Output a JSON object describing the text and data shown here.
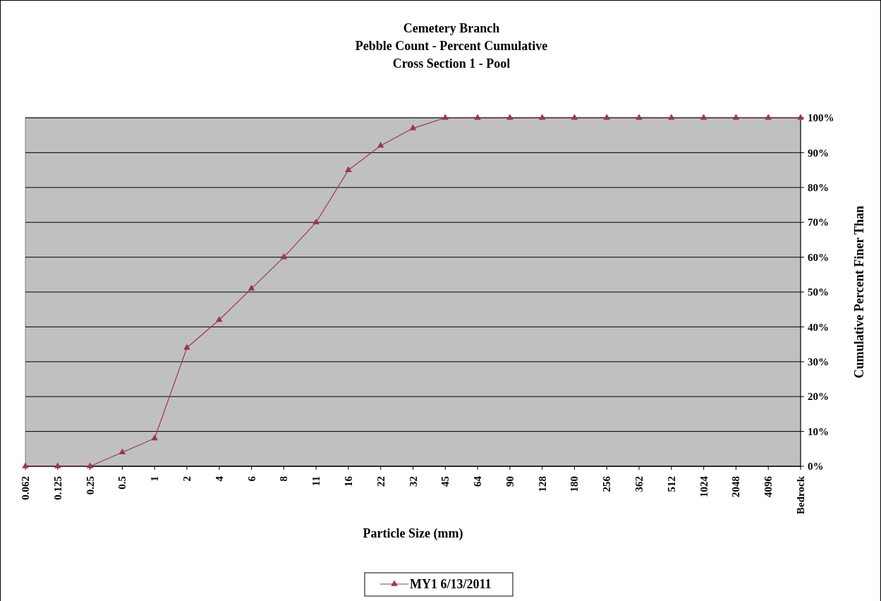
{
  "chart_data": {
    "type": "line",
    "title": "Cemetery Branch\nPebble Count - Percent Cumulative\nCross Section 1 - Pool",
    "xlabel": "Particle Size (mm)",
    "ylabel": "Cumulative Percent Finer Than",
    "categories": [
      "0.062",
      "0.125",
      "0.25",
      "0.5",
      "1",
      "2",
      "4",
      "6",
      "8",
      "11",
      "16",
      "22",
      "32",
      "45",
      "64",
      "90",
      "128",
      "180",
      "256",
      "362",
      "512",
      "1024",
      "2048",
      "4096",
      "Bedrock"
    ],
    "series": [
      {
        "name": "MY1 6/13/2011",
        "color": "#993366",
        "values": [
          0,
          0,
          0,
          4,
          8,
          34,
          42,
          51,
          60,
          70,
          85,
          92,
          97,
          100,
          100,
          100,
          100,
          100,
          100,
          100,
          100,
          100,
          100,
          100,
          100
        ]
      }
    ],
    "ylim": [
      0,
      100
    ],
    "yticks": [
      {
        "value": 0,
        "label": "0%"
      },
      {
        "value": 10,
        "label": "10%"
      },
      {
        "value": 20,
        "label": "20%"
      },
      {
        "value": 30,
        "label": "30%"
      },
      {
        "value": 40,
        "label": "40%"
      },
      {
        "value": 50,
        "label": "50%"
      },
      {
        "value": 60,
        "label": "60%"
      },
      {
        "value": 70,
        "label": "70%"
      },
      {
        "value": 80,
        "label": "80%"
      },
      {
        "value": 90,
        "label": "90%"
      },
      {
        "value": 100,
        "label": "100%"
      }
    ],
    "grid": "y",
    "legend": "bottom",
    "marker": "triangle",
    "line_style": "solid"
  }
}
